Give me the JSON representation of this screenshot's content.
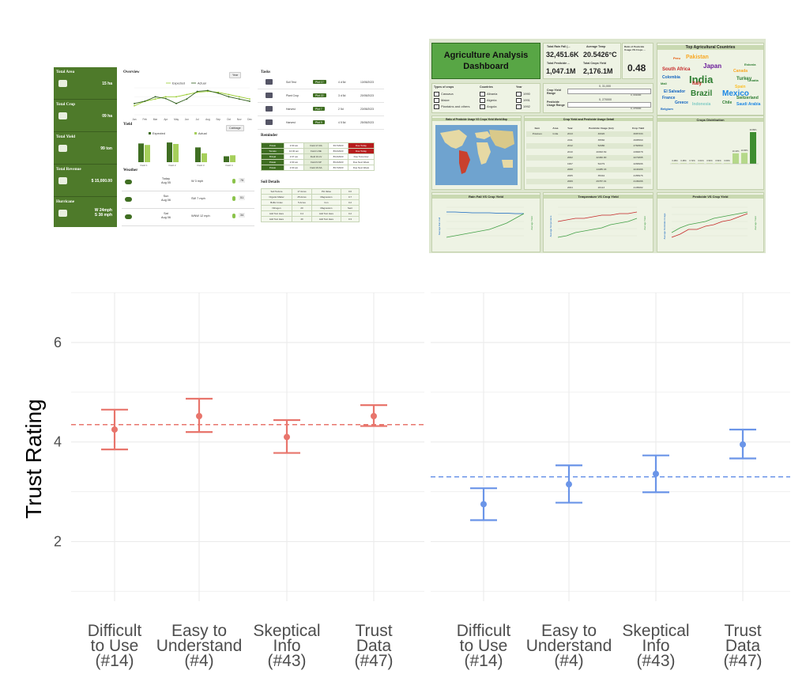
{
  "farm_dashboard": {
    "kpis": [
      {
        "label": "Total Area",
        "value": "15 ha",
        "icon": "area-icon"
      },
      {
        "label": "Total Crop",
        "value": "09 ha",
        "icon": "crop-icon"
      },
      {
        "label": "Total Yield",
        "value": "99 ton",
        "icon": "sprout-icon"
      },
      {
        "label": "Total Revenue",
        "value": "$ 15,000.00",
        "icon": "money-icon"
      },
      {
        "label": "Hurricane",
        "value": "W 24mph",
        "value2": "S 38 mph",
        "icon": "hurricane-icon"
      }
    ],
    "overview": {
      "title": "Overview",
      "button": "Year",
      "legend": [
        "Expected",
        "Actual"
      ],
      "months": [
        "Jan",
        "Feb",
        "Mar",
        "Apr",
        "May",
        "Jun",
        "Jul",
        "Aug",
        "Sep",
        "Oct",
        "Nov",
        "Dec"
      ],
      "expected": [
        2,
        3,
        3.5,
        4,
        4,
        4.5,
        5,
        5.2,
        5,
        4.5,
        4,
        3.5
      ],
      "actual": [
        2.5,
        3,
        4,
        3.6,
        2.5,
        3.5,
        5.2,
        5.4,
        4.8,
        4,
        3.5,
        3
      ]
    },
    "yield": {
      "title": "Yield",
      "button": "Cabbage",
      "legend": [
        "Expected",
        "Actual"
      ],
      "fields": [
        "Field 1",
        "Field 2",
        "Field 3",
        "Field 4"
      ],
      "expected": [
        38,
        40,
        30,
        12
      ],
      "actual": [
        35,
        37,
        18,
        14
      ]
    },
    "weather": {
      "title": "Weather",
      "rows": [
        {
          "day": "Today",
          "date": "Aug 05",
          "wind": "W 3 mph",
          "temp": "76"
        },
        {
          "day": "Sun",
          "date": "Aug 06",
          "wind": "SW 7 mph",
          "temp": "51"
        },
        {
          "day": "Sat",
          "date": "Aug 06",
          "wind": "WNW 12 mph",
          "temp": "34"
        }
      ]
    },
    "tasks": {
      "title": "Tasks",
      "rows": [
        {
          "task": "Soil Test",
          "field": "Plot 17",
          "dur": "4 d 5d",
          "date": "13/05/2023"
        },
        {
          "task": "Plant Crop",
          "field": "Plot 22",
          "dur": "3 d 5d",
          "date": "20/05/2023"
        },
        {
          "task": "Harvest",
          "field": "Plot 7",
          "dur": "2 5d",
          "date": "23/05/2023"
        },
        {
          "task": "Harvest",
          "field": "Plot 9",
          "dur": "4 5 5d",
          "date": "25/05/2023"
        }
      ]
    },
    "reminder": {
      "title": "Reminder",
      "rows": [
        {
          "crop": "Potato",
          "time": "2:30 am",
          "field": "Field 17-DA",
          "date": "6/17/2023",
          "status": "Due Today",
          "alert": true
        },
        {
          "crop": "Tomato",
          "time": "10:30 am",
          "field": "Field 1-NE",
          "date": "8/10/2023",
          "status": "Due Today",
          "alert": true
        },
        {
          "crop": "Brinjal",
          "time": "2:37 am",
          "field": "Field 10-LV",
          "date": "8/14/2023",
          "status": "Due Tomorrow",
          "alert": false
        },
        {
          "crop": "Potato",
          "time": "2:30 am",
          "field": "Field 6-SP",
          "date": "8/14/2023",
          "status": "Due Next Week",
          "alert": false
        },
        {
          "crop": "Potato",
          "time": "2:30 am",
          "field": "Field 19-SA",
          "date": "8/17/2023",
          "status": "Due Next Week",
          "alert": false
        }
      ]
    },
    "soil": {
      "title": "Soil Details",
      "rows": [
        [
          "Soil Texture",
          "17 Acres",
          "PH Value",
          "0.0"
        ],
        [
          "Organic Matter",
          "25 Acres",
          "Magnesium",
          "0.7"
        ],
        [
          "Buffer Index",
          "5 Acres",
          "Iron",
          "0.2"
        ],
        [
          "Nitrogen",
          "20",
          "Magnesium",
          "Sent"
        ],
        [
          "Add Text Here",
          "0.4",
          "Add Text Here",
          "0.2"
        ],
        [
          "Add Text Here",
          "40",
          "Add Text Here",
          "0.3"
        ]
      ]
    }
  },
  "agri_dashboard": {
    "title_line1": "Agriculture Analysis",
    "title_line2": "Dashboard",
    "kpis": [
      {
        "label": "Total Rain Fall (...",
        "value": "32,451.6K"
      },
      {
        "label": "Average Temp",
        "value": "20.5426°C"
      },
      {
        "label": "Total Pesticide ...",
        "value": "1,047.1M"
      },
      {
        "label": "Total Crops Yield",
        "value": "2,176.1M"
      },
      {
        "label": "Ratio of Pesticide Usage VS Crops ...",
        "value": "0.48"
      }
    ],
    "filters": {
      "crops_label": "Types of crops",
      "countries_label": "Countries",
      "year_label": "Year",
      "crops": [
        "Cassava",
        "Maize",
        "Plantains and others"
      ],
      "countries": [
        "Albania",
        "Algeria",
        "Angola"
      ],
      "years": [
        "1990",
        "1991",
        "1992"
      ]
    },
    "ranges": [
      {
        "label": "Crop Yield Range",
        "min": "0, 31,000",
        "max": "0, 031000"
      },
      {
        "label": "Pesticide Usage Range",
        "min": "0, 270000",
        "max": "0, 270000"
      }
    ],
    "word_cloud_title": "Top Agricultural Countries",
    "word_cloud": [
      {
        "word": "India",
        "color": "#2e7d32",
        "size": 13
      },
      {
        "word": "Brazil",
        "color": "#2e7d32",
        "size": 10
      },
      {
        "word": "Mexico",
        "color": "#1e88e5",
        "size": 10
      },
      {
        "word": "Japan",
        "color": "#6a1b9a",
        "size": 8
      },
      {
        "word": "Pakistan",
        "color": "#f9a825",
        "size": 7
      },
      {
        "word": "South Africa",
        "color": "#c62828",
        "size": 6
      },
      {
        "word": "Turkey",
        "color": "#2e7d32",
        "size": 6
      },
      {
        "word": "Italy",
        "color": "#c62828",
        "size": 6
      },
      {
        "word": "Colombia",
        "color": "#1565c0",
        "size": 5
      },
      {
        "word": "Canada",
        "color": "#f9a825",
        "size": 5
      },
      {
        "word": "Spain",
        "color": "#fbc02d",
        "size": 5
      },
      {
        "word": "Switzerland",
        "color": "#2e7d32",
        "size": 5
      },
      {
        "word": "Chile",
        "color": "#2e7d32",
        "size": 5
      },
      {
        "word": "Saudi Arabia",
        "color": "#1e88e5",
        "size": 5
      },
      {
        "word": "Indonesia",
        "color": "#80cbc4",
        "size": 5
      },
      {
        "word": "El Salvador",
        "color": "#1565c0",
        "size": 5
      },
      {
        "word": "France",
        "color": "#1565c0",
        "size": 5
      },
      {
        "word": "Greece",
        "color": "#1565c0",
        "size": 5
      },
      {
        "word": "Belgium",
        "color": "#1565c0",
        "size": 4
      },
      {
        "word": "Estonia",
        "color": "#2e7d32",
        "size": 4
      },
      {
        "word": "Croatia",
        "color": "#2e7d32",
        "size": 4
      },
      {
        "word": "Peru",
        "color": "#e65100",
        "size": 4
      },
      {
        "word": "Mali",
        "color": "#2e7d32",
        "size": 4
      }
    ],
    "map_title": "Ratio of Pesticide Usage VS Crops Yield World Map",
    "table_title": "Crop Yield and Pesticide Usage Detail",
    "table_headers": [
      "Item",
      "Area",
      "Year",
      "Pesticide Usage (ton)",
      "Crop Yield"
    ],
    "table_rows": [
      [
        "Potatoes",
        "India",
        "2013",
        "40020",
        "3087333"
      ],
      [
        "",
        "",
        "2011",
        "35560",
        "4995560"
      ],
      [
        "",
        "",
        "2012",
        "52980",
        "4760560"
      ],
      [
        "",
        "",
        "2010",
        "40093.69",
        "4384878"
      ],
      [
        "",
        "",
        "2002",
        "42482.00",
        "4271895"
      ],
      [
        "",
        "",
        "1997",
        "52279",
        "4266996"
      ],
      [
        "",
        "",
        "2008",
        "14485.33",
        "4243466"
      ],
      [
        "",
        "",
        "2005",
        "35342",
        "4155976"
      ],
      [
        "",
        "",
        "2009",
        "29787.01",
        "4136266"
      ],
      [
        "",
        "",
        "2004",
        "20113",
        "4135082"
      ]
    ],
    "crops_distribution_title": "Crops Distribution",
    "crops_distribution_values": [
      "0.48%",
      "0.48%",
      "0.72%",
      "0.61%",
      "0.54%",
      "0.54%",
      "0.60%",
      "10.16%",
      "10.65%",
      "30.89%"
    ],
    "mini_charts": [
      {
        "title": "Rain Fall VS Crop Yield",
        "left_axis": "Average Rain Fall",
        "right_axis": "Average Yield"
      },
      {
        "title": "Temperature VS Crop Yield",
        "left_axis": "Average Temperature",
        "right_axis": "Average Yield"
      },
      {
        "title": "Pesticide VS Crop Yield",
        "left_axis": "Average Pesticides Usage",
        "right_axis": "Average Yield"
      }
    ]
  },
  "chart_data": {
    "type": "scatter",
    "ylabel": "Trust Rating",
    "ylim": [
      0.8,
      7.0
    ],
    "yticks": [
      2,
      4,
      6
    ],
    "grid": true,
    "categories": [
      "Difficult to Use (#14)",
      "Easy to Understand (#4)",
      "Skeptical Info (#43)",
      "Trust Data (#47)"
    ],
    "category_lines": [
      [
        "Difficult",
        "to Use",
        "(#14)"
      ],
      [
        "Easy to",
        "Understand",
        "(#4)"
      ],
      [
        "Skeptical",
        "Info",
        "(#43)"
      ],
      [
        "Trust",
        "Data",
        "(#47)"
      ]
    ],
    "panels": [
      {
        "name": "Farm dashboard",
        "color": "#e8756c",
        "mean": 4.35,
        "points": [
          {
            "value": 4.25,
            "lower": 3.85,
            "upper": 4.65
          },
          {
            "value": 4.52,
            "lower": 4.2,
            "upper": 4.87
          },
          {
            "value": 4.1,
            "lower": 3.78,
            "upper": 4.44
          },
          {
            "value": 4.52,
            "lower": 4.32,
            "upper": 4.74
          }
        ]
      },
      {
        "name": "Agriculture analysis dashboard",
        "color": "#6b95e8",
        "mean": 3.3,
        "points": [
          {
            "value": 2.75,
            "lower": 2.43,
            "upper": 3.07
          },
          {
            "value": 3.15,
            "lower": 2.78,
            "upper": 3.53
          },
          {
            "value": 3.36,
            "lower": 2.99,
            "upper": 3.73
          },
          {
            "value": 3.95,
            "lower": 3.67,
            "upper": 4.25
          }
        ]
      }
    ]
  }
}
